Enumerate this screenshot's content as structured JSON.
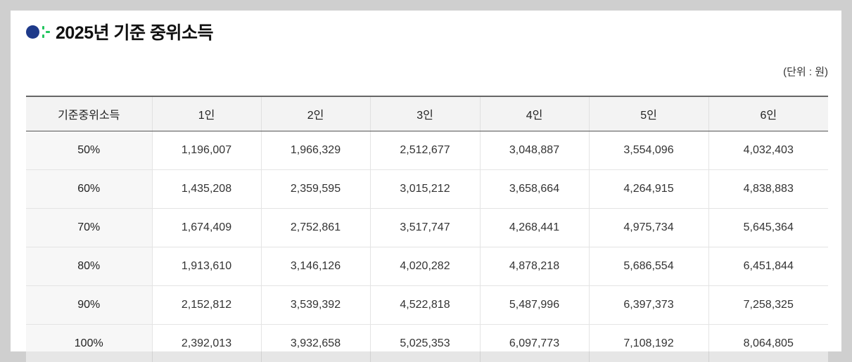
{
  "header": {
    "title": "2025년 기준 중위소득",
    "unit": "(단위 : 원)",
    "logo_icon": "dot-logo-icon",
    "colors": {
      "logo_dot": "#1e3a8a",
      "logo_accent": "#22c55e"
    }
  },
  "table": {
    "columns": [
      "기준중위소득",
      "1인",
      "2인",
      "3인",
      "4인",
      "5인",
      "6인"
    ],
    "rows": [
      [
        "50%",
        "1,196,007",
        "1,966,329",
        "2,512,677",
        "3,048,887",
        "3,554,096",
        "4,032,403"
      ],
      [
        "60%",
        "1,435,208",
        "2,359,595",
        "3,015,212",
        "3,658,664",
        "4,264,915",
        "4,838,883"
      ],
      [
        "70%",
        "1,674,409",
        "2,752,861",
        "3,517,747",
        "4,268,441",
        "4,975,734",
        "5,645,364"
      ],
      [
        "80%",
        "1,913,610",
        "3,146,126",
        "4,020,282",
        "4,878,218",
        "5,686,554",
        "6,451,844"
      ],
      [
        "90%",
        "2,152,812",
        "3,539,392",
        "4,522,818",
        "5,487,996",
        "6,397,373",
        "7,258,325"
      ],
      [
        "100%",
        "2,392,013",
        "3,932,658",
        "5,025,353",
        "6,097,773",
        "7,108,192",
        "8,064,805"
      ]
    ]
  }
}
